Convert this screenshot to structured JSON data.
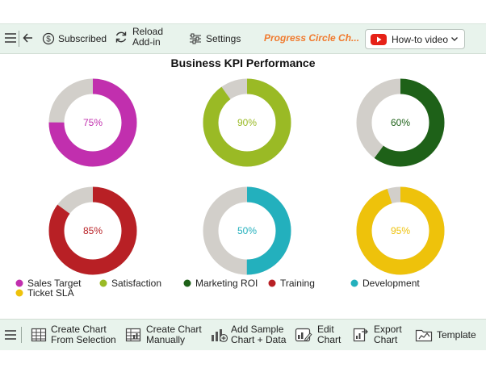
{
  "toolbar": {
    "subscribed_label": "Subscribed",
    "reload_label_1": "Reload",
    "reload_label_2": "Add-in",
    "settings_label": "Settings",
    "brand_title": "Progress Circle Ch...",
    "howto_label": "How-to video"
  },
  "bottom_bar": {
    "create_selection_1": "Create Chart",
    "create_selection_2": "From Selection",
    "create_manual_1": "Create Chart",
    "create_manual_2": "Manually",
    "add_sample_1": "Add Sample",
    "add_sample_2": "Chart + Data",
    "edit_chart_1": "Edit",
    "edit_chart_2": "Chart",
    "export_chart_1": "Export",
    "export_chart_2": "Chart",
    "template_label": "Template"
  },
  "colors": {
    "ring_track": "#d2cfca",
    "accent_orange": "#f07a2e",
    "youtube_red": "#e62117"
  },
  "chart_data": {
    "type": "progress-circle",
    "title": "Business KPI Performance",
    "categories": [
      "Sales Target",
      "Satisfaction",
      "Marketing ROI",
      "Training",
      "Development",
      "Ticket SLA"
    ],
    "values": [
      75,
      90,
      60,
      85,
      50,
      95
    ],
    "value_labels": [
      "75%",
      "90%",
      "60%",
      "85%",
      "50%",
      "95%"
    ],
    "colors": [
      "#c12fae",
      "#9aba25",
      "#1e6118",
      "#b82025",
      "#23b0bd",
      "#eec20b"
    ],
    "unit": "%",
    "max": 100,
    "legend_position": "bottom"
  }
}
